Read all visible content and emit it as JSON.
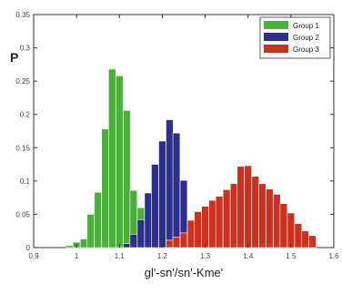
{
  "chart_data": {
    "type": "bar",
    "title": "",
    "xlabel": "gl'-sn'/sn'-Kme'",
    "ylabel": "P",
    "xlim": [
      0.9,
      1.6
    ],
    "ylim": [
      0,
      0.35
    ],
    "xticks": [
      "0.9",
      "1",
      "1.1",
      "1.2",
      "1.3",
      "1.4",
      "1.5",
      "1.6"
    ],
    "yticks": [
      "0",
      "0.05",
      "0.1",
      "0.15",
      "0.2",
      "0.25",
      "0.3",
      "0.35"
    ],
    "bin_width": 0.0167,
    "grid": false,
    "legend_position": "top-right",
    "series": [
      {
        "name": "Group 1",
        "color": "#4caf3c",
        "x": [
          0.983,
          1.0,
          1.017,
          1.033,
          1.05,
          1.067,
          1.083,
          1.1,
          1.117,
          1.133,
          1.15,
          1.167
        ],
        "values": [
          0.003,
          0.008,
          0.013,
          0.05,
          0.083,
          0.178,
          0.268,
          0.258,
          0.206,
          0.086,
          0.06,
          0.03
        ]
      },
      {
        "name": "Group 2",
        "color": "#2b2f8f",
        "x": [
          1.117,
          1.133,
          1.15,
          1.167,
          1.183,
          1.2,
          1.217,
          1.233,
          1.25,
          1.267,
          1.283
        ],
        "values": [
          0.006,
          0.02,
          0.042,
          0.082,
          0.125,
          0.16,
          0.192,
          0.172,
          0.101,
          0.038,
          0.01
        ]
      },
      {
        "name": "Group 3",
        "color": "#c8321e",
        "x": [
          1.217,
          1.233,
          1.25,
          1.267,
          1.283,
          1.3,
          1.317,
          1.333,
          1.35,
          1.367,
          1.383,
          1.4,
          1.417,
          1.433,
          1.45,
          1.467,
          1.483,
          1.5,
          1.517,
          1.533,
          1.55
        ],
        "values": [
          0.011,
          0.016,
          0.022,
          0.041,
          0.054,
          0.062,
          0.071,
          0.077,
          0.087,
          0.096,
          0.122,
          0.123,
          0.107,
          0.096,
          0.088,
          0.08,
          0.066,
          0.052,
          0.036,
          0.025,
          0.018
        ]
      }
    ]
  }
}
